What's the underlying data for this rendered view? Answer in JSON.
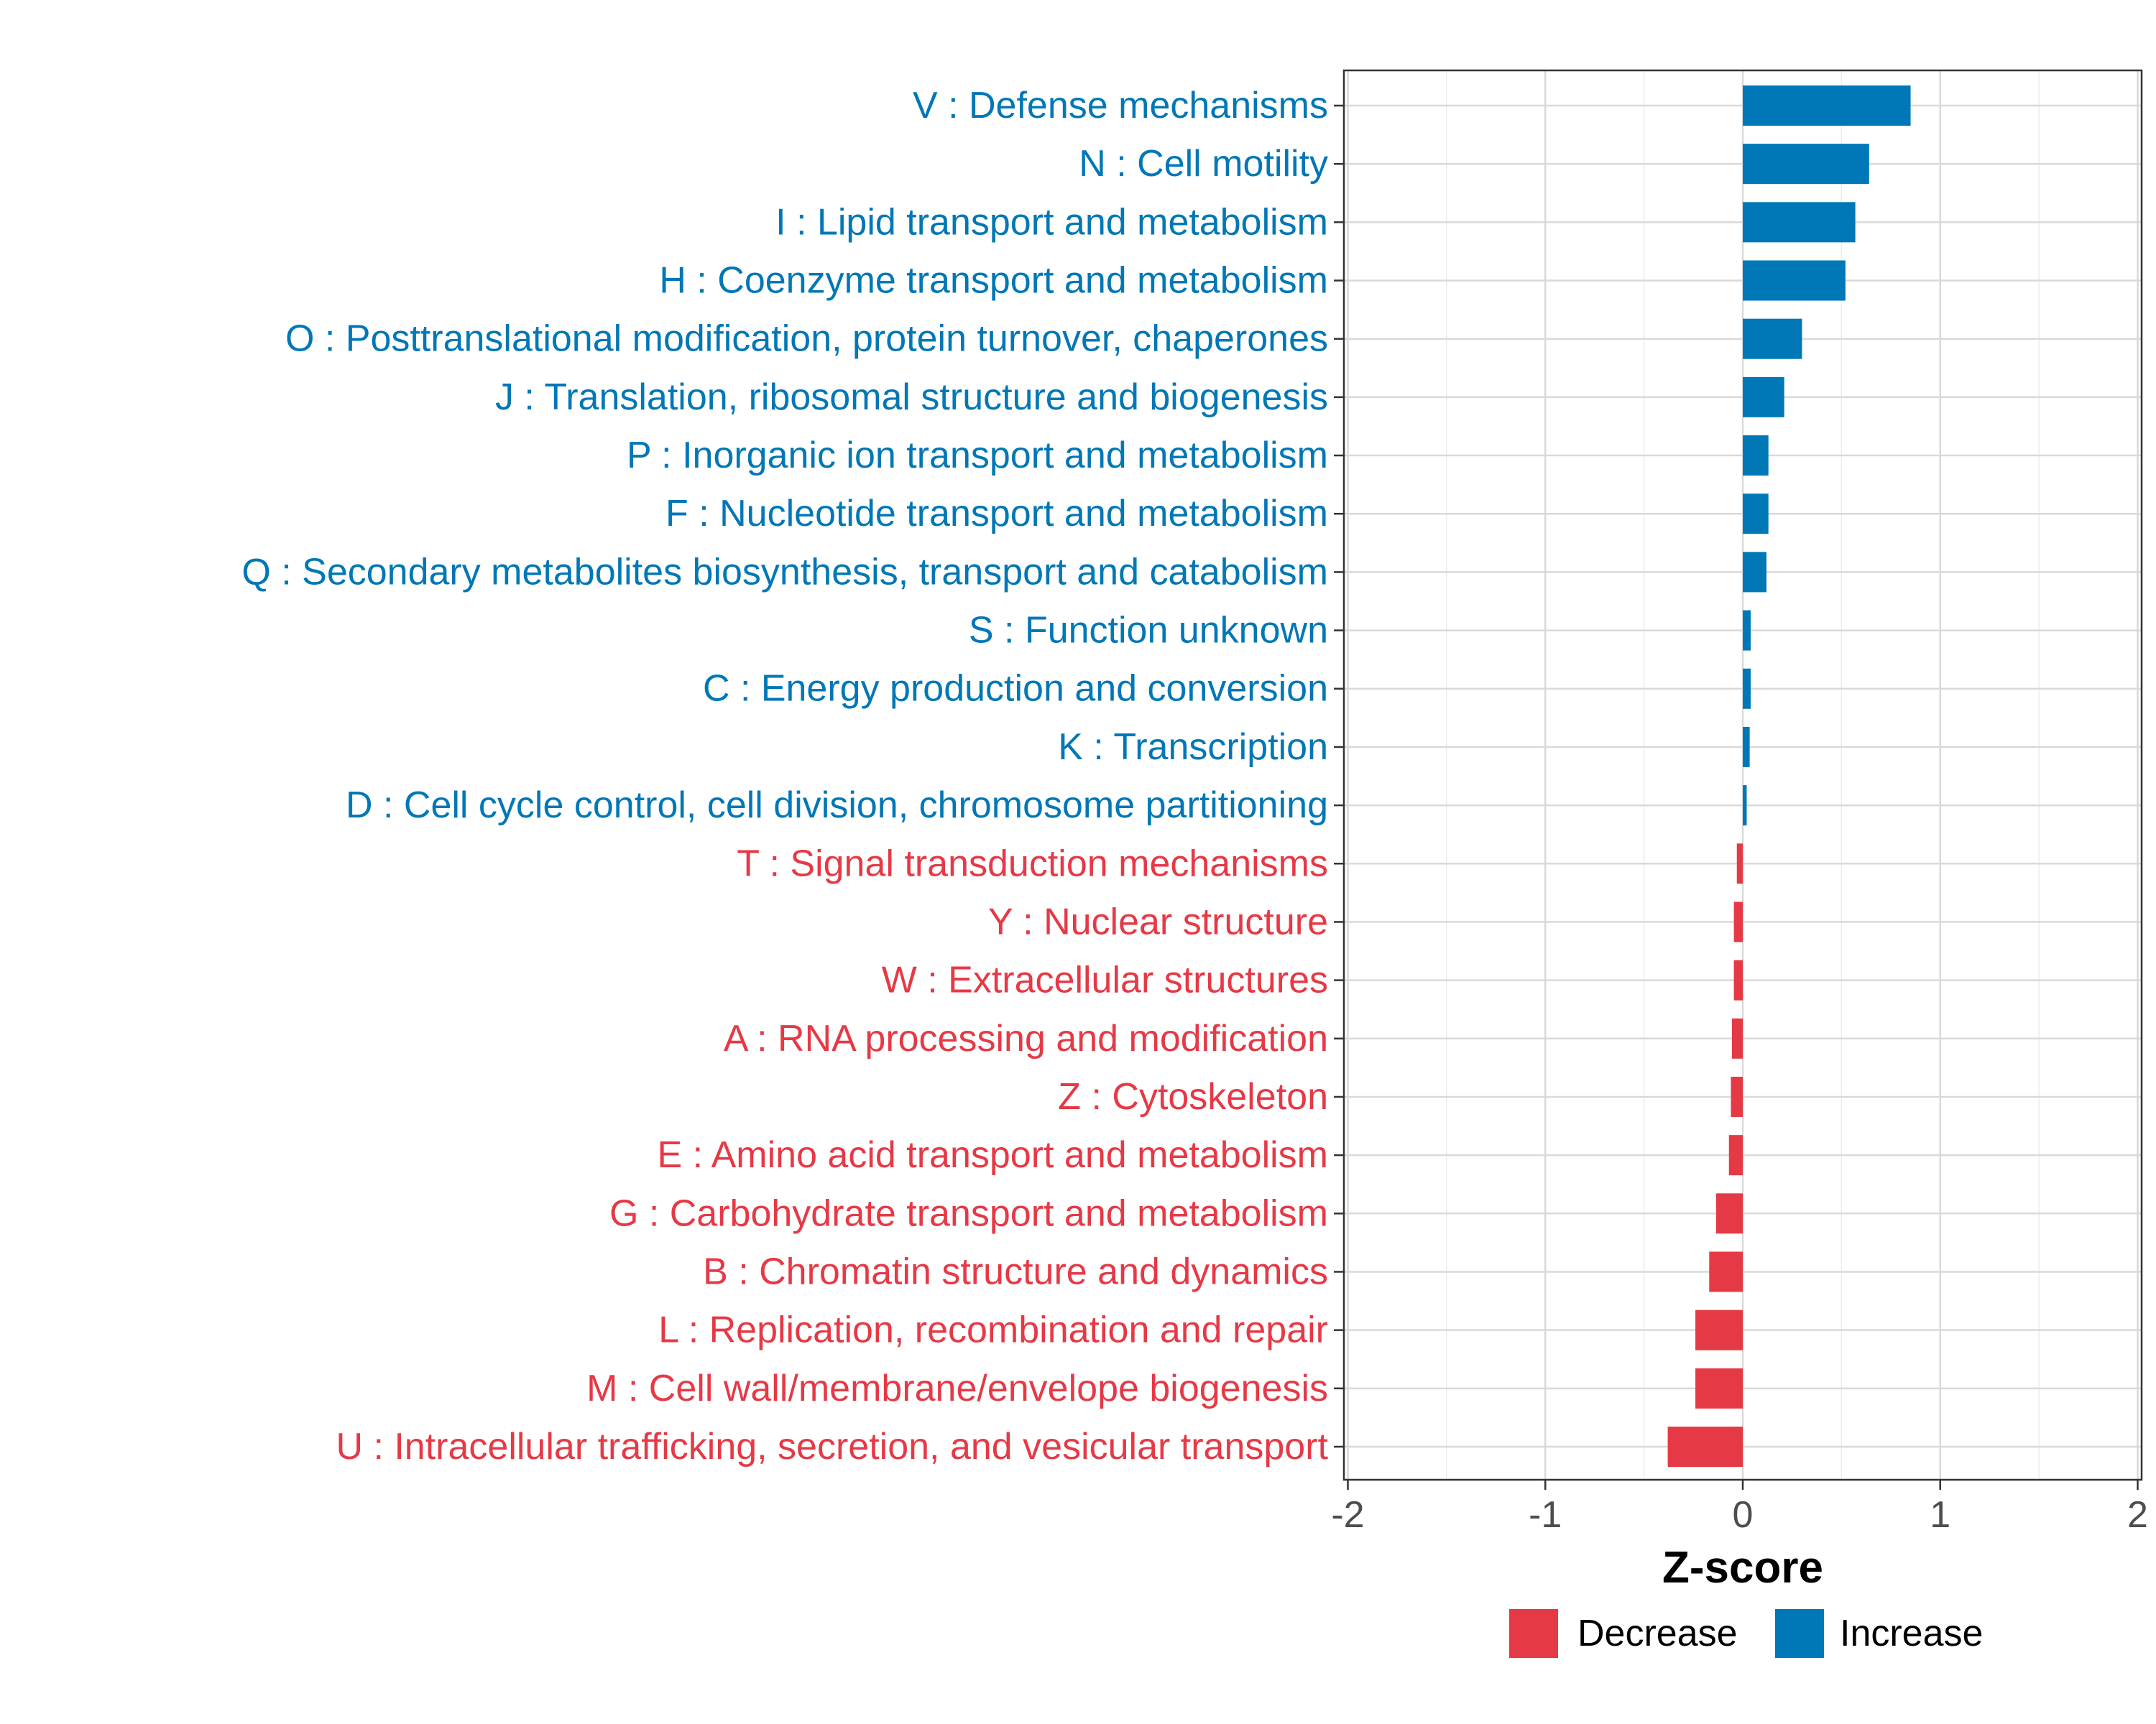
{
  "chart_data": {
    "type": "bar",
    "orientation": "horizontal",
    "categories": [
      "V : Defense mechanisms",
      "N : Cell motility",
      "I : Lipid transport and metabolism",
      "H : Coenzyme transport and metabolism",
      "O : Posttranslational modification, protein turnover, chaperones",
      "J : Translation, ribosomal structure and biogenesis",
      "P : Inorganic ion transport and metabolism",
      "F : Nucleotide transport and metabolism",
      "Q : Secondary metabolites biosynthesis, transport and catabolism",
      "S : Function unknown",
      "C : Energy production and conversion",
      "K : Transcription",
      "D : Cell cycle control, cell division, chromosome partitioning",
      "T : Signal transduction mechanisms",
      "Y : Nuclear structure",
      "W : Extracellular structures",
      "A : RNA processing and modification",
      "Z : Cytoskeleton",
      "E : Amino acid transport and metabolism",
      "G : Carbohydrate transport and metabolism",
      "B : Chromatin structure and dynamics",
      "L : Replication, recombination and repair",
      "M : Cell wall/membrane/envelope biogenesis",
      "U : Intracellular trafficking, secretion, and vesicular transport"
    ],
    "values": [
      0.85,
      0.64,
      0.57,
      0.52,
      0.3,
      0.21,
      0.13,
      0.13,
      0.12,
      0.04,
      0.04,
      0.035,
      0.02,
      -0.03,
      -0.045,
      -0.045,
      -0.055,
      -0.06,
      -0.07,
      -0.135,
      -0.17,
      -0.24,
      -0.24,
      -0.38
    ],
    "groups": [
      "Increase",
      "Increase",
      "Increase",
      "Increase",
      "Increase",
      "Increase",
      "Increase",
      "Increase",
      "Increase",
      "Increase",
      "Increase",
      "Increase",
      "Increase",
      "Decrease",
      "Decrease",
      "Decrease",
      "Decrease",
      "Decrease",
      "Decrease",
      "Decrease",
      "Decrease",
      "Decrease",
      "Decrease",
      "Decrease"
    ],
    "xlabel": "Z-score",
    "ylabel": "",
    "xlim": [
      -2.02,
      2.02
    ],
    "xticks": [
      -2,
      -1,
      0,
      1,
      2
    ],
    "xtick_labels": [
      "-2",
      "-1",
      "0",
      "1",
      "2"
    ],
    "grid": true,
    "legend": {
      "position": "bottom",
      "entries": [
        {
          "label": "Decrease",
          "color": "#E63946"
        },
        {
          "label": "Increase",
          "color": "#0077B6"
        }
      ]
    },
    "colors": {
      "Increase": "#0077B6",
      "Decrease": "#E63946"
    }
  }
}
